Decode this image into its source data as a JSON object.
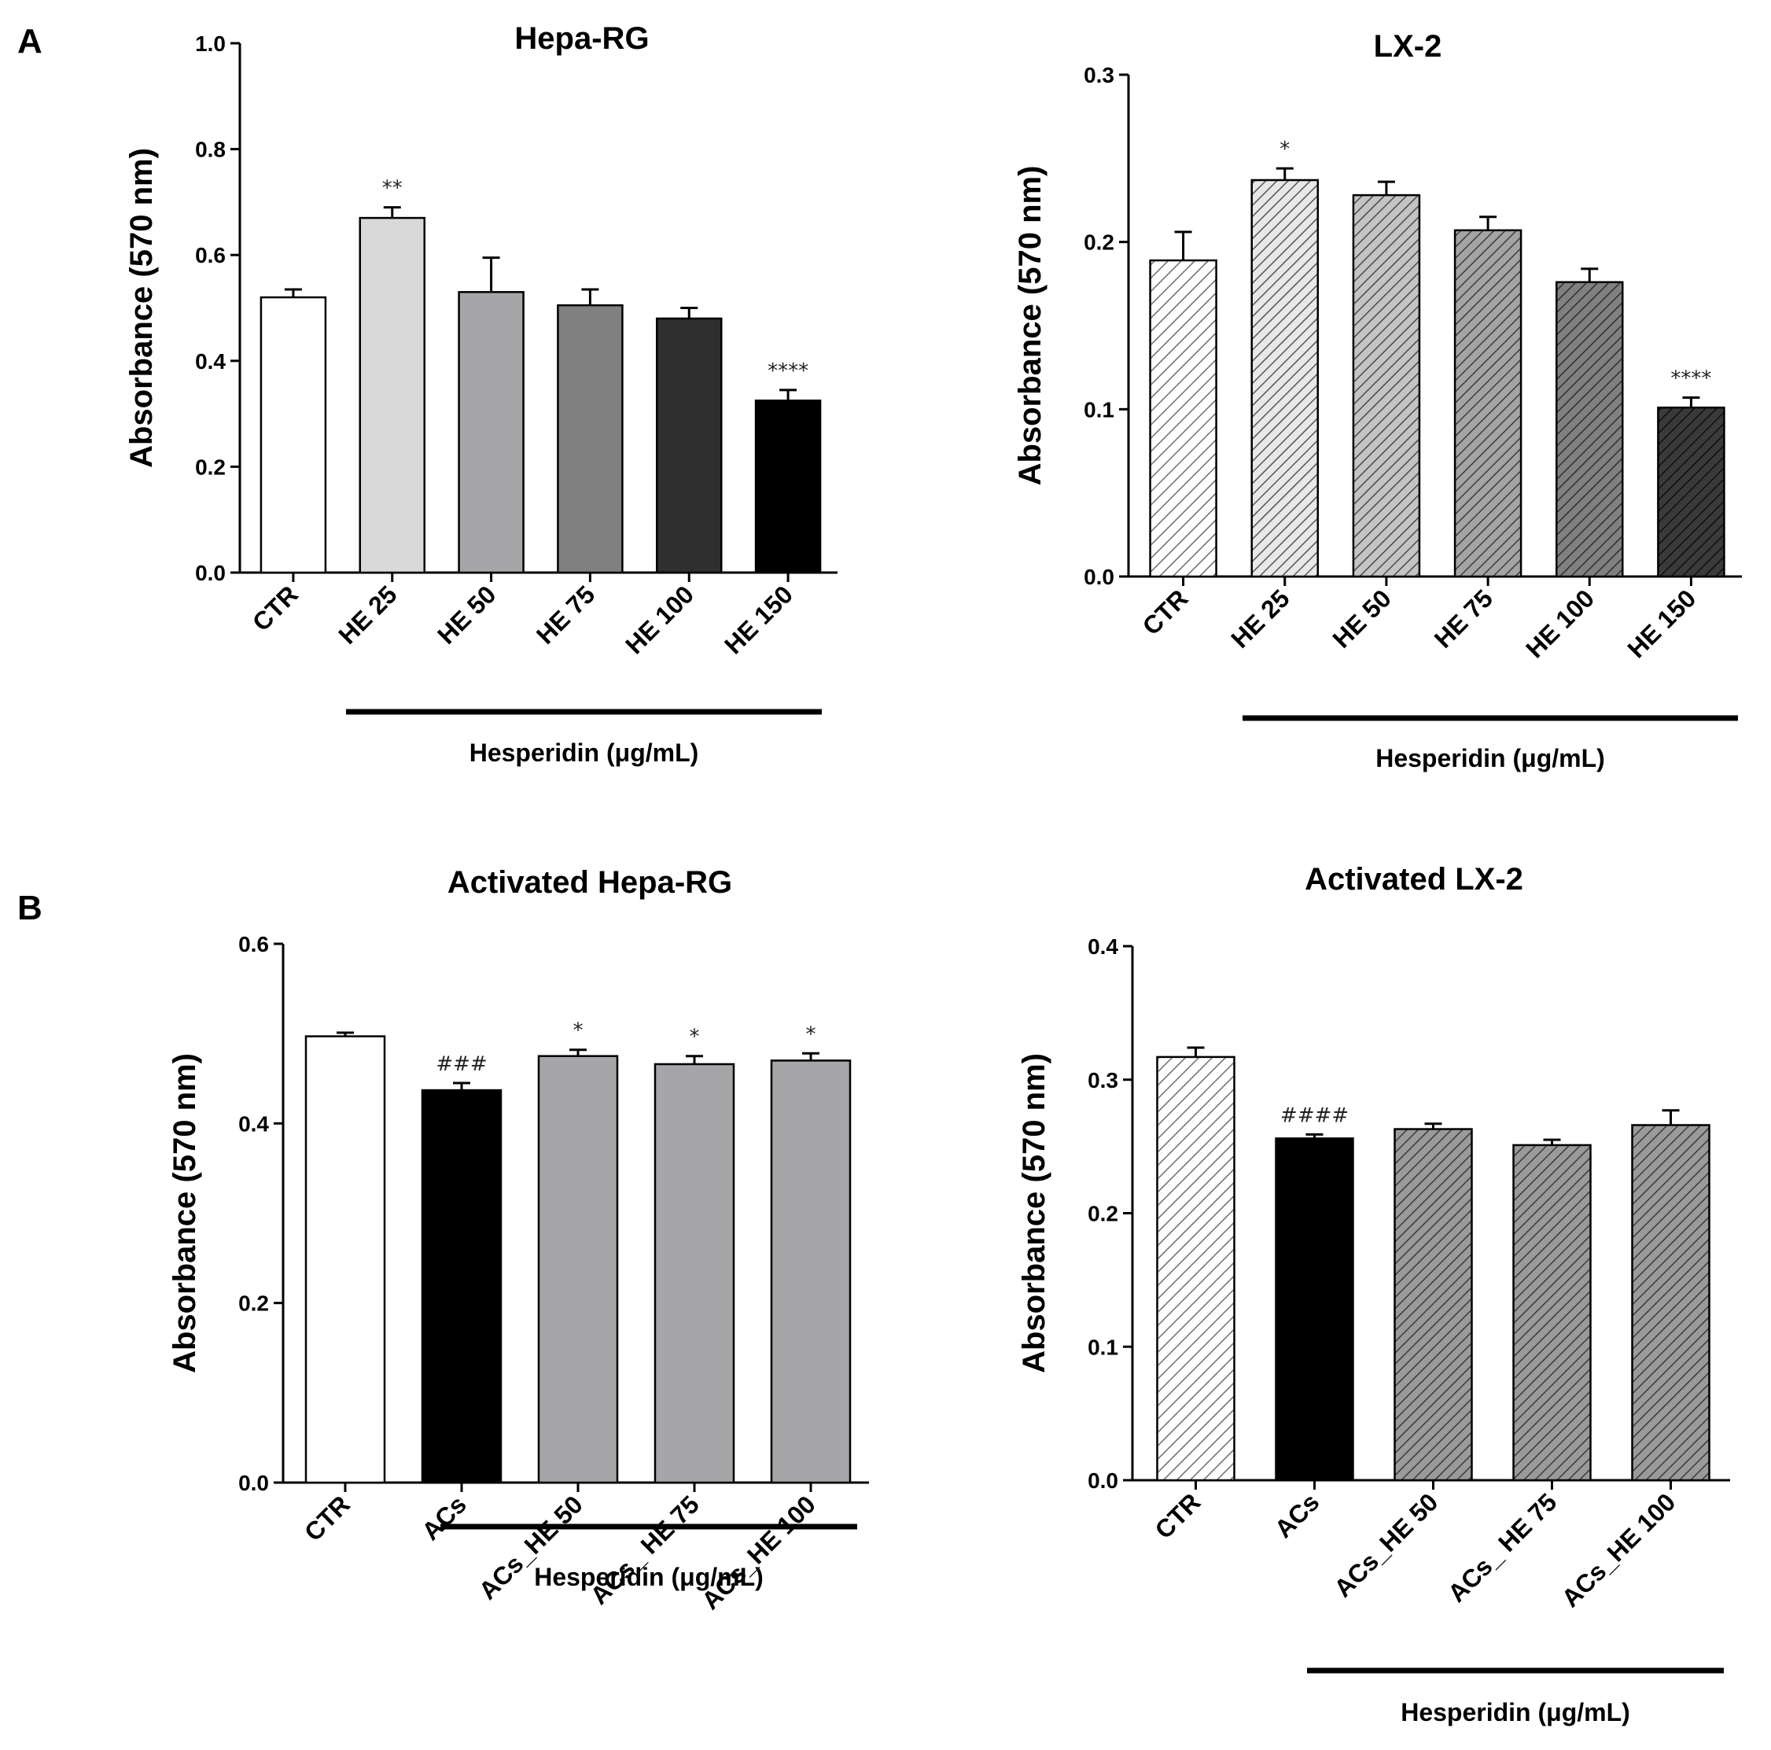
{
  "panel_labels": [
    "A",
    "B"
  ],
  "colors": {
    "white": "#ffffff",
    "light_gray": "#d9d9d9",
    "mid_gray": "#a6a6a8",
    "dark_gray": "#808080",
    "charcoal": "#2f2f2f",
    "black": "#000000"
  },
  "chart_data": [
    {
      "type": "bar",
      "panel": "A",
      "title": "Hepa-RG",
      "xlabel": "Hesperidin (μg/mL)",
      "ylabel": "Absorbance (570 nm)",
      "ylim": [
        0,
        1.0
      ],
      "yticks": [
        "0.0",
        "0.2",
        "0.4",
        "0.6",
        "0.8",
        "1.0"
      ],
      "categories": [
        "CTR",
        "HE 25",
        "HE 50",
        "HE 75",
        "HE 100",
        "HE 150"
      ],
      "values": [
        0.52,
        0.67,
        0.53,
        0.505,
        0.48,
        0.325
      ],
      "errors": [
        0.015,
        0.02,
        0.065,
        0.03,
        0.02,
        0.02
      ],
      "annotations": [
        "",
        "**",
        "",
        "",
        "",
        "****"
      ],
      "fill_style": [
        "solid",
        "solid",
        "solid",
        "solid",
        "solid",
        "solid"
      ],
      "fills": [
        "#ffffff",
        "#d9d9d9",
        "#a6a6a8",
        "#808080",
        "#2f2f2f",
        "#000000"
      ],
      "bracket_from_index": 1
    },
    {
      "type": "bar",
      "panel": "A",
      "title": "LX-2",
      "xlabel": "Hesperidin (μg/mL)",
      "ylabel": "Absorbance (570 nm)",
      "ylim": [
        0,
        0.3
      ],
      "yticks": [
        "0.0",
        "0.1",
        "0.2",
        "0.3"
      ],
      "categories": [
        "CTR",
        "HE 25",
        "HE 50",
        "HE 75",
        "HE 100",
        "HE 150"
      ],
      "values": [
        0.189,
        0.237,
        0.228,
        0.207,
        0.176,
        0.101
      ],
      "errors": [
        0.017,
        0.007,
        0.008,
        0.008,
        0.008,
        0.006
      ],
      "annotations": [
        "",
        "*",
        "",
        "",
        "",
        "****"
      ],
      "fill_style": [
        "hatch",
        "hatch",
        "hatch",
        "hatch",
        "hatch",
        "hatch"
      ],
      "fills": [
        "#ffffff",
        "#e0e0e0",
        "#b3b3b3",
        "#909090",
        "#6a6a6a",
        "#3a3a3a"
      ],
      "bracket_from_index": 1
    },
    {
      "type": "bar",
      "panel": "B",
      "title": "Activated  Hepa-RG",
      "xlabel": "Hesperidin (μg/mL)",
      "ylabel": "Absorbance (570 nm)",
      "ylim": [
        0,
        0.6
      ],
      "yticks": [
        "0.0",
        "0.2",
        "0.4",
        "0.6"
      ],
      "categories": [
        "CTR",
        "ACs",
        "ACs_HE 50",
        "ACs_ HE 75",
        "ACs_HE 100"
      ],
      "values": [
        0.497,
        0.437,
        0.475,
        0.466,
        0.47
      ],
      "errors": [
        0.004,
        0.008,
        0.007,
        0.009,
        0.008
      ],
      "annotations": [
        "",
        "###",
        "*",
        "*",
        "*"
      ],
      "fill_style": [
        "solid",
        "solid",
        "solid",
        "solid",
        "solid"
      ],
      "fills": [
        "#ffffff",
        "#000000",
        "#a6a6a8",
        "#a6a6a8",
        "#a6a6a8"
      ],
      "bracket_from_index": 1
    },
    {
      "type": "bar",
      "panel": "B",
      "title": "Activated LX-2",
      "xlabel": "Hesperidin (μg/mL)",
      "ylabel": "Absorbance (570 nm)",
      "ylim": [
        0,
        0.4
      ],
      "yticks": [
        "0.0",
        "0.1",
        "0.2",
        "0.3",
        "0.4"
      ],
      "categories": [
        "CTR",
        "ACs",
        "ACs_HE 50",
        "ACs_ HE 75",
        "ACs_HE 100"
      ],
      "values": [
        0.317,
        0.256,
        0.263,
        0.251,
        0.266
      ],
      "errors": [
        0.007,
        0.003,
        0.004,
        0.004,
        0.011
      ],
      "annotations": [
        "",
        "####",
        "",
        "",
        ""
      ],
      "fill_style": [
        "hatch",
        "solid",
        "hatch",
        "hatch",
        "hatch"
      ],
      "fills": [
        "#ffffff",
        "#000000",
        "#8a8a8a",
        "#8a8a8a",
        "#8a8a8a"
      ],
      "bracket_from_index": 1
    }
  ]
}
